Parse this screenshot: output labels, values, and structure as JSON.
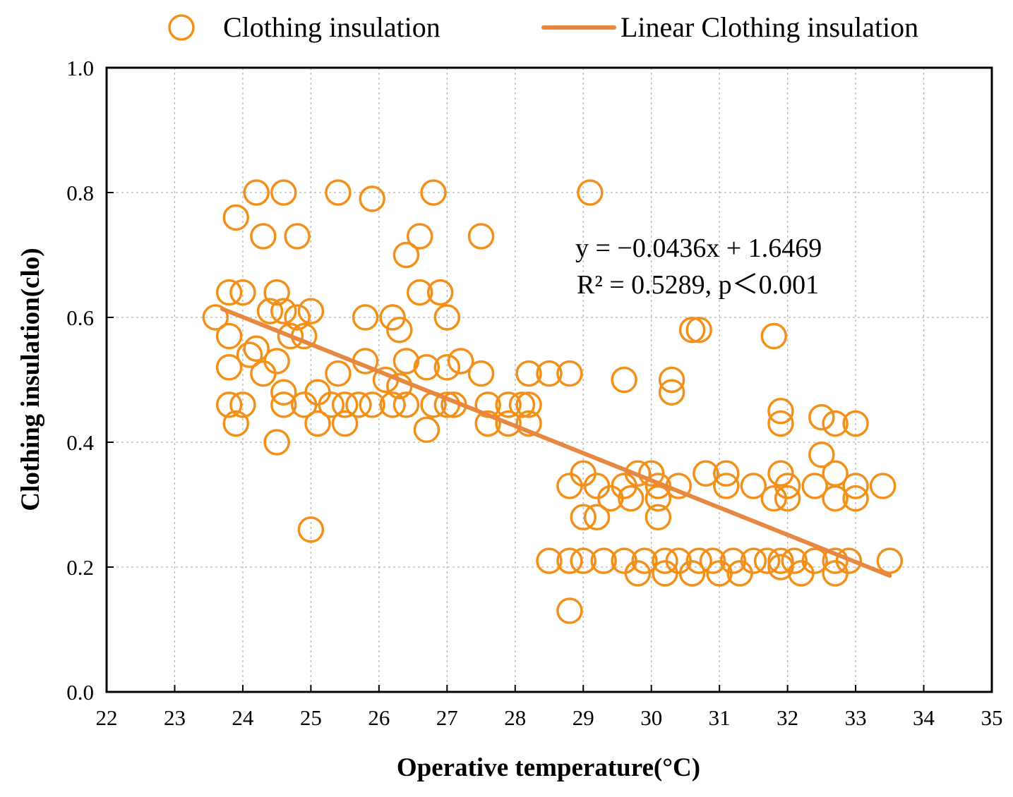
{
  "chart_data": {
    "type": "scatter",
    "title": "",
    "xlabel": "Operative temperature(°C)",
    "ylabel": "Clothing insulation(clo)",
    "xlim": [
      22,
      35
    ],
    "ylim": [
      0.0,
      1.0
    ],
    "xticks": [
      "22",
      "23",
      "24",
      "25",
      "26",
      "27",
      "28",
      "29",
      "30",
      "31",
      "32",
      "33",
      "34",
      "35"
    ],
    "yticks": [
      "0.0",
      "0.2",
      "0.4",
      "0.6",
      "0.8",
      "1.0"
    ],
    "grid": true,
    "legend_position": "top",
    "marker_color": "#f39019",
    "line_color": "#e8873f",
    "series": [
      {
        "name": "Clothing insulation",
        "kind": "scatter",
        "points": [
          [
            24.2,
            0.8
          ],
          [
            24.6,
            0.8
          ],
          [
            25.4,
            0.8
          ],
          [
            25.9,
            0.79
          ],
          [
            26.8,
            0.8
          ],
          [
            29.1,
            0.8
          ],
          [
            23.9,
            0.76
          ],
          [
            24.3,
            0.73
          ],
          [
            24.8,
            0.73
          ],
          [
            26.6,
            0.73
          ],
          [
            27.5,
            0.73
          ],
          [
            26.4,
            0.7
          ],
          [
            23.8,
            0.64
          ],
          [
            24.0,
            0.64
          ],
          [
            24.5,
            0.64
          ],
          [
            26.6,
            0.64
          ],
          [
            26.9,
            0.64
          ],
          [
            23.6,
            0.6
          ],
          [
            24.4,
            0.61
          ],
          [
            24.6,
            0.61
          ],
          [
            25.0,
            0.61
          ],
          [
            24.8,
            0.6
          ],
          [
            25.8,
            0.6
          ],
          [
            26.2,
            0.6
          ],
          [
            27.0,
            0.6
          ],
          [
            23.8,
            0.57
          ],
          [
            24.7,
            0.57
          ],
          [
            24.9,
            0.57
          ],
          [
            26.3,
            0.58
          ],
          [
            30.6,
            0.58
          ],
          [
            30.7,
            0.58
          ],
          [
            31.8,
            0.57
          ],
          [
            24.2,
            0.55
          ],
          [
            24.1,
            0.54
          ],
          [
            24.5,
            0.53
          ],
          [
            25.8,
            0.53
          ],
          [
            26.4,
            0.53
          ],
          [
            26.7,
            0.52
          ],
          [
            27.2,
            0.53
          ],
          [
            23.8,
            0.52
          ],
          [
            24.3,
            0.51
          ],
          [
            25.4,
            0.51
          ],
          [
            27.0,
            0.52
          ],
          [
            27.5,
            0.51
          ],
          [
            28.2,
            0.51
          ],
          [
            28.5,
            0.51
          ],
          [
            28.8,
            0.51
          ],
          [
            26.1,
            0.5
          ],
          [
            26.3,
            0.49
          ],
          [
            29.6,
            0.5
          ],
          [
            30.3,
            0.5
          ],
          [
            30.3,
            0.48
          ],
          [
            24.6,
            0.48
          ],
          [
            25.1,
            0.48
          ],
          [
            23.8,
            0.46
          ],
          [
            24.0,
            0.46
          ],
          [
            24.6,
            0.46
          ],
          [
            24.9,
            0.46
          ],
          [
            25.3,
            0.46
          ],
          [
            25.5,
            0.46
          ],
          [
            25.7,
            0.46
          ],
          [
            25.9,
            0.46
          ],
          [
            26.2,
            0.46
          ],
          [
            26.4,
            0.46
          ],
          [
            26.8,
            0.46
          ],
          [
            27.0,
            0.46
          ],
          [
            27.1,
            0.46
          ],
          [
            27.6,
            0.46
          ],
          [
            27.9,
            0.46
          ],
          [
            28.1,
            0.46
          ],
          [
            28.2,
            0.46
          ],
          [
            23.9,
            0.43
          ],
          [
            25.1,
            0.43
          ],
          [
            25.5,
            0.43
          ],
          [
            27.6,
            0.43
          ],
          [
            27.9,
            0.43
          ],
          [
            28.2,
            0.43
          ],
          [
            31.9,
            0.45
          ],
          [
            31.9,
            0.43
          ],
          [
            32.5,
            0.44
          ],
          [
            32.7,
            0.43
          ],
          [
            33.0,
            0.43
          ],
          [
            24.5,
            0.4
          ],
          [
            26.7,
            0.42
          ],
          [
            25.0,
            0.26
          ],
          [
            32.5,
            0.38
          ],
          [
            29.0,
            0.35
          ],
          [
            29.8,
            0.35
          ],
          [
            30.0,
            0.35
          ],
          [
            30.8,
            0.35
          ],
          [
            31.1,
            0.35
          ],
          [
            31.9,
            0.35
          ],
          [
            32.7,
            0.35
          ],
          [
            28.8,
            0.33
          ],
          [
            29.2,
            0.33
          ],
          [
            29.6,
            0.33
          ],
          [
            30.1,
            0.33
          ],
          [
            30.4,
            0.33
          ],
          [
            31.1,
            0.33
          ],
          [
            31.5,
            0.33
          ],
          [
            32.0,
            0.33
          ],
          [
            32.4,
            0.33
          ],
          [
            33.0,
            0.33
          ],
          [
            33.4,
            0.33
          ],
          [
            29.4,
            0.31
          ],
          [
            29.7,
            0.31
          ],
          [
            30.1,
            0.31
          ],
          [
            31.8,
            0.31
          ],
          [
            32.0,
            0.31
          ],
          [
            32.7,
            0.31
          ],
          [
            33.0,
            0.31
          ],
          [
            29.0,
            0.28
          ],
          [
            29.2,
            0.28
          ],
          [
            30.1,
            0.28
          ],
          [
            28.5,
            0.21
          ],
          [
            28.8,
            0.21
          ],
          [
            29.0,
            0.21
          ],
          [
            29.3,
            0.21
          ],
          [
            29.6,
            0.21
          ],
          [
            29.9,
            0.21
          ],
          [
            30.2,
            0.21
          ],
          [
            30.4,
            0.21
          ],
          [
            30.7,
            0.21
          ],
          [
            30.9,
            0.21
          ],
          [
            31.2,
            0.21
          ],
          [
            31.5,
            0.21
          ],
          [
            31.7,
            0.21
          ],
          [
            31.9,
            0.21
          ],
          [
            32.1,
            0.21
          ],
          [
            32.4,
            0.21
          ],
          [
            32.7,
            0.21
          ],
          [
            32.9,
            0.21
          ],
          [
            33.5,
            0.21
          ],
          [
            29.8,
            0.19
          ],
          [
            30.2,
            0.19
          ],
          [
            30.6,
            0.19
          ],
          [
            31.0,
            0.19
          ],
          [
            31.3,
            0.19
          ],
          [
            31.9,
            0.2
          ],
          [
            32.2,
            0.19
          ],
          [
            32.7,
            0.19
          ],
          [
            28.8,
            0.13
          ]
        ]
      },
      {
        "name": "Linear Clothing insulation",
        "kind": "line",
        "x_range": [
          23.7,
          33.5
        ],
        "slope": -0.0436,
        "intercept": 1.6469
      }
    ],
    "annotations": [
      "y = −0.0436x + 1.6469",
      "R² = 0.5289, p＜0.001"
    ]
  }
}
